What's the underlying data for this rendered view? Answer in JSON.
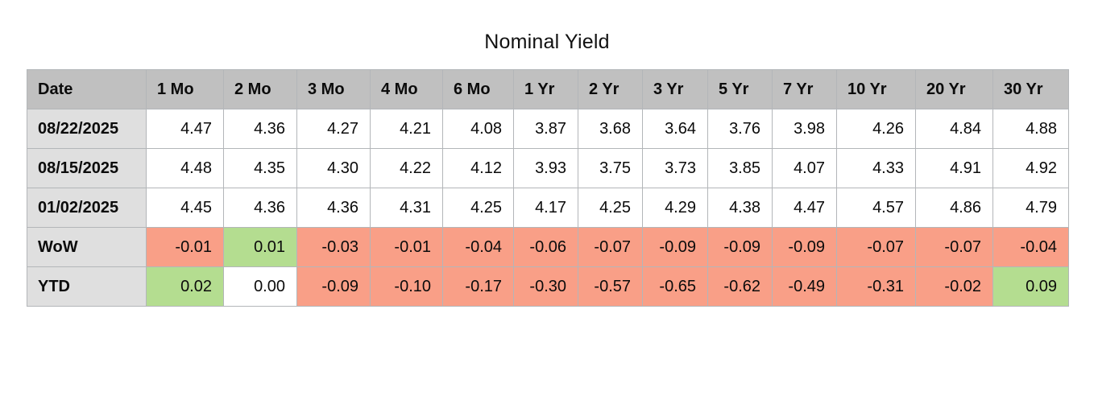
{
  "title": "Nominal Yield",
  "colors": {
    "header_bg": "#c0c0c0",
    "label_bg": "#dfdfdf",
    "negative_bg": "#f99f87",
    "positive_bg": "#b4dd90",
    "zero_bg": "#ffffff",
    "border": "#b3b6b9",
    "text": "#0b0b0b"
  },
  "chart_data": {
    "type": "table",
    "title": "Nominal Yield",
    "columns": [
      "Date",
      "1 Mo",
      "2 Mo",
      "3 Mo",
      "4 Mo",
      "6 Mo",
      "1 Yr",
      "2 Yr",
      "3 Yr",
      "5 Yr",
      "7 Yr",
      "10 Yr",
      "20 Yr",
      "30 Yr"
    ],
    "rows": [
      {
        "label": "08/22/2025",
        "type": "data",
        "values": [
          "4.47",
          "4.36",
          "4.27",
          "4.21",
          "4.08",
          "3.87",
          "3.68",
          "3.64",
          "3.76",
          "3.98",
          "4.26",
          "4.84",
          "4.88"
        ]
      },
      {
        "label": "08/15/2025",
        "type": "data",
        "values": [
          "4.48",
          "4.35",
          "4.30",
          "4.22",
          "4.12",
          "3.93",
          "3.75",
          "3.73",
          "3.85",
          "4.07",
          "4.33",
          "4.91",
          "4.92"
        ]
      },
      {
        "label": "01/02/2025",
        "type": "data",
        "values": [
          "4.45",
          "4.36",
          "4.36",
          "4.31",
          "4.25",
          "4.17",
          "4.25",
          "4.29",
          "4.38",
          "4.47",
          "4.57",
          "4.86",
          "4.79"
        ]
      },
      {
        "label": "WoW",
        "type": "delta",
        "values": [
          "-0.01",
          "0.01",
          "-0.03",
          "-0.01",
          "-0.04",
          "-0.06",
          "-0.07",
          "-0.09",
          "-0.09",
          "-0.09",
          "-0.07",
          "-0.07",
          "-0.04"
        ]
      },
      {
        "label": "YTD",
        "type": "delta",
        "values": [
          "0.02",
          "0.00",
          "-0.09",
          "-0.10",
          "-0.17",
          "-0.30",
          "-0.57",
          "-0.65",
          "-0.62",
          "-0.49",
          "-0.31",
          "-0.02",
          "0.09"
        ]
      }
    ]
  }
}
